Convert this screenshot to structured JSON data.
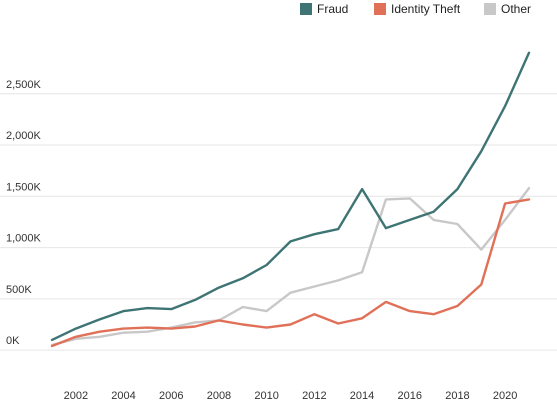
{
  "chart_data": {
    "type": "line",
    "title": "",
    "xlabel": "",
    "ylabel": "",
    "x": [
      2001,
      2002,
      2003,
      2004,
      2005,
      2006,
      2007,
      2008,
      2009,
      2010,
      2011,
      2012,
      2013,
      2014,
      2015,
      2016,
      2017,
      2018,
      2019,
      2020,
      2021
    ],
    "xticks": [
      2002,
      2004,
      2006,
      2008,
      2010,
      2012,
      2014,
      2016,
      2018,
      2020
    ],
    "xtick_labels": [
      "2002",
      "2004",
      "2006",
      "2008",
      "2010",
      "2012",
      "2014",
      "2016",
      "2018",
      "2020"
    ],
    "yticks": [
      0,
      500000,
      1000000,
      1500000,
      2000000,
      2500000
    ],
    "ytick_labels": [
      "0K",
      "500K",
      "1,000K",
      "1,500K",
      "2,000K",
      "2,500K"
    ],
    "xlim": [
      2001,
      2021
    ],
    "ylim": [
      -350000,
      3200000
    ],
    "grid": true,
    "legend_position": "top-right",
    "series": [
      {
        "name": "Fraud",
        "color": "#3e7574",
        "values": [
          100000,
          210000,
          300000,
          380000,
          410000,
          400000,
          490000,
          610000,
          700000,
          830000,
          1060000,
          1130000,
          1180000,
          1570000,
          1190000,
          1270000,
          1350000,
          1570000,
          1940000,
          2380000,
          2900000
        ]
      },
      {
        "name": "Identity Theft",
        "color": "#e07158",
        "values": [
          40000,
          130000,
          180000,
          210000,
          220000,
          210000,
          230000,
          290000,
          250000,
          220000,
          250000,
          350000,
          260000,
          310000,
          470000,
          380000,
          350000,
          430000,
          640000,
          1430000,
          1470000
        ]
      },
      {
        "name": "Other",
        "color": "#c8c8c8",
        "values": [
          50000,
          110000,
          130000,
          170000,
          180000,
          220000,
          270000,
          290000,
          420000,
          380000,
          560000,
          620000,
          680000,
          760000,
          1470000,
          1480000,
          1270000,
          1230000,
          980000,
          1270000,
          1580000
        ]
      }
    ]
  }
}
